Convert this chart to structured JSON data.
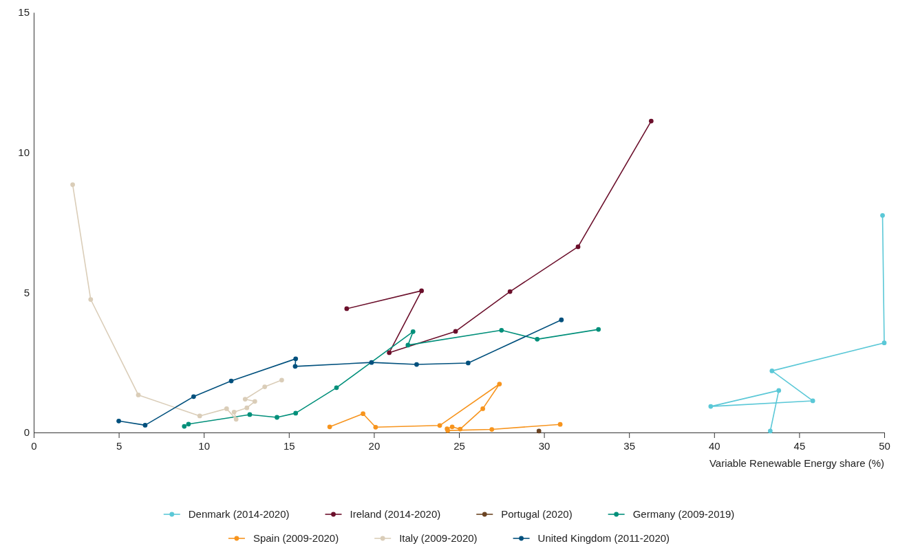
{
  "chart_data": {
    "type": "line",
    "xlabel": "Variable Renewable Energy share (%)",
    "xlim": [
      0,
      50
    ],
    "xticks": [
      0,
      5,
      10,
      15,
      20,
      25,
      30,
      35,
      40,
      45,
      50
    ],
    "ylim": [
      0,
      15
    ],
    "yticks": [
      0,
      5,
      10,
      15
    ],
    "grid": false,
    "legend": "bottom",
    "marker": "circle",
    "line_style": "solid",
    "series": [
      {
        "name": "Denmark (2014-2020)",
        "color": "#5bc8d7",
        "x": [
          43.3,
          43.8,
          39.8,
          45.8,
          43.4,
          50,
          49.9
        ],
        "values": [
          0.05,
          1.5,
          0.93,
          1.13,
          2.2,
          3.2,
          7.75
        ]
      },
      {
        "name": "Ireland (2014-2020)",
        "color": "#6b0f2b",
        "x": [
          18.4,
          22.8,
          20.9,
          24.8,
          28.0,
          32.0,
          36.3
        ],
        "values": [
          4.42,
          5.06,
          2.85,
          3.61,
          5.03,
          6.63,
          11.12
        ]
      },
      {
        "name": "Portugal (2020)",
        "color": "#6b4423",
        "x": [
          29.7
        ],
        "values": [
          0.05
        ]
      },
      {
        "name": "Germany (2009-2019)",
        "color": "#008f7a",
        "x": [
          8.85,
          9.1,
          12.7,
          14.3,
          15.4,
          17.8,
          22.3,
          22.0,
          27.5,
          29.6,
          33.2
        ],
        "values": [
          0.22,
          0.3,
          0.64,
          0.54,
          0.69,
          1.6,
          3.6,
          3.12,
          3.65,
          3.33,
          3.68
        ]
      },
      {
        "name": "Spain (2009-2020)",
        "color": "#f7941d",
        "x": [
          17.4,
          19.36,
          20.1,
          23.87,
          27.38,
          26.4,
          25.07,
          24.6,
          24.3,
          24.34,
          26.93,
          30.95
        ],
        "values": [
          0.2,
          0.67,
          0.19,
          0.25,
          1.73,
          0.85,
          0.12,
          0.2,
          0.13,
          0.07,
          0.11,
          0.29
        ]
      },
      {
        "name": "Italy (2009-2020)",
        "color": "#dacdb8",
        "x": [
          2.29,
          3.35,
          6.15,
          9.76,
          11.34,
          11.9,
          11.78,
          12.53,
          13.0,
          12.43,
          13.58,
          14.58
        ],
        "values": [
          8.85,
          4.75,
          1.34,
          0.59,
          0.85,
          0.47,
          0.73,
          0.88,
          1.11,
          1.19,
          1.63,
          1.87
        ]
      },
      {
        "name": "United Kingdom (2011-2020)",
        "color": "#00507d",
        "x": [
          5.0,
          6.55,
          9.4,
          11.61,
          15.4,
          15.37,
          19.86,
          22.51,
          25.54,
          31.02
        ],
        "values": [
          0.41,
          0.26,
          1.28,
          1.84,
          2.63,
          2.36,
          2.5,
          2.43,
          2.48,
          4.02
        ]
      }
    ]
  }
}
